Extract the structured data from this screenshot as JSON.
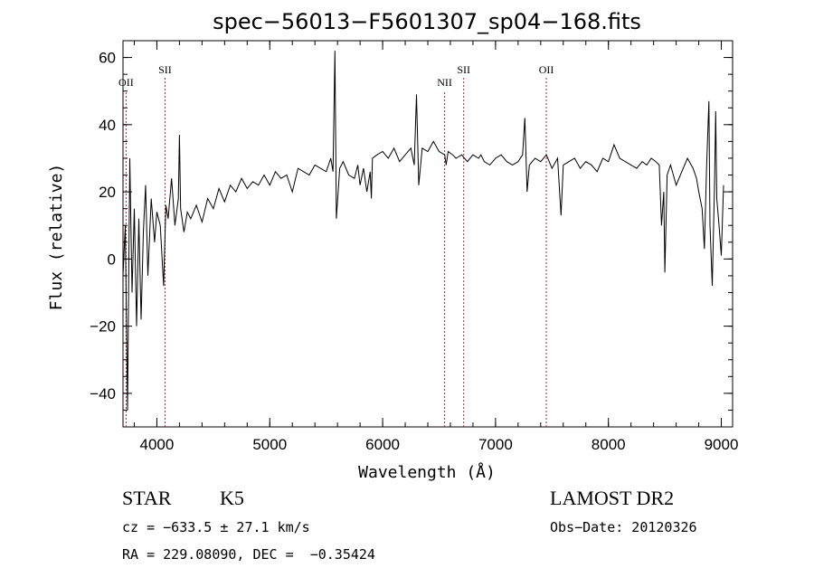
{
  "chart_data": {
    "type": "line",
    "title": "spec−56013−F5601307_sp04−168.fits",
    "xlabel": "Wavelength (Å)",
    "ylabel": "Flux (relative)",
    "xlim": [
      3700,
      9100
    ],
    "ylim": [
      -50,
      65
    ],
    "x_ticks": [
      4000,
      5000,
      6000,
      7000,
      8000,
      9000
    ],
    "x_tick_labels": [
      "4000",
      "5000",
      "6000",
      "7000",
      "8000",
      "9000"
    ],
    "y_ticks": [
      -40,
      -20,
      0,
      20,
      40,
      60
    ],
    "y_tick_labels": [
      "−40",
      "−20",
      "0",
      "20",
      "40",
      "60"
    ],
    "grid": false,
    "line_color": "#000000",
    "marker_color": "#b22222",
    "emission_lines": [
      {
        "label": "OII",
        "wavelength": 3727
      },
      {
        "label": "SII",
        "wavelength": 4072
      },
      {
        "label": "NII",
        "wavelength": 6549
      },
      {
        "label": "SII",
        "wavelength": 6718
      },
      {
        "label": "OII",
        "wavelength": 7450
      }
    ],
    "series": [
      {
        "x": [
          3700,
          3720,
          3740,
          3760,
          3780,
          3800,
          3820,
          3840,
          3860,
          3880,
          3900,
          3920,
          3950,
          3980,
          4000,
          4030,
          4060,
          4080,
          4100,
          4130,
          4160,
          4190,
          4200,
          4210,
          4240,
          4270,
          4300,
          4350,
          4400,
          4450,
          4500,
          4550,
          4600,
          4650,
          4700,
          4750,
          4800,
          4850,
          4900,
          4950,
          5000,
          5050,
          5100,
          5150,
          5200,
          5250,
          5300,
          5350,
          5400,
          5450,
          5500,
          5540,
          5560,
          5577,
          5590,
          5620,
          5650,
          5700,
          5750,
          5780,
          5800,
          5830,
          5860,
          5890,
          5900,
          5910,
          5950,
          6000,
          6050,
          6100,
          6150,
          6200,
          6250,
          6280,
          6300,
          6320,
          6350,
          6400,
          6450,
          6500,
          6550,
          6563,
          6580,
          6620,
          6650,
          6700,
          6750,
          6800,
          6850,
          6870,
          6900,
          6950,
          7000,
          7050,
          7100,
          7150,
          7200,
          7240,
          7260,
          7280,
          7300,
          7350,
          7400,
          7450,
          7500,
          7550,
          7580,
          7600,
          7650,
          7700,
          7750,
          7800,
          7850,
          7900,
          7950,
          8000,
          8050,
          8100,
          8150,
          8200,
          8250,
          8300,
          8340,
          8380,
          8420,
          8450,
          8470,
          8490,
          8500,
          8520,
          8550,
          8600,
          8650,
          8700,
          8750,
          8780,
          8800,
          8830,
          8850,
          8870,
          8890,
          8900,
          8920,
          8940,
          8950,
          8960,
          8980,
          9000,
          9020
        ],
        "y": [
          -5,
          10,
          -45,
          30,
          -10,
          15,
          -20,
          12,
          -18,
          8,
          22,
          -5,
          18,
          5,
          14,
          10,
          -8,
          16,
          12,
          24,
          10,
          18,
          37,
          15,
          8,
          14,
          12,
          16,
          11,
          18,
          15,
          21,
          17,
          22,
          20,
          24,
          21,
          23,
          22,
          25,
          22,
          26,
          24,
          25,
          20,
          27,
          26,
          25,
          28,
          27,
          26,
          30,
          26,
          62,
          12,
          27,
          29,
          25,
          24,
          28,
          22,
          27,
          20,
          26,
          18,
          30,
          31,
          32,
          30,
          33,
          29,
          31,
          33,
          28,
          49,
          22,
          33,
          32,
          35,
          32,
          31,
          28,
          32,
          31,
          30,
          31,
          29,
          31,
          30,
          31,
          29,
          28,
          30,
          31,
          29,
          28,
          29,
          31,
          42,
          20,
          28,
          30,
          29,
          31,
          27,
          30,
          13,
          28,
          29,
          30,
          27,
          29,
          28,
          26,
          30,
          29,
          34,
          30,
          29,
          28,
          27,
          29,
          28,
          30,
          29,
          28,
          10,
          20,
          -4,
          25,
          28,
          22,
          26,
          30,
          27,
          24,
          20,
          15,
          3,
          28,
          47,
          10,
          -8,
          22,
          44,
          18,
          10,
          1,
          22
        ]
      }
    ]
  },
  "info": {
    "object_class": "STAR",
    "subclass": "K5",
    "survey": "LAMOST DR2",
    "redshift_line": "cz = −633.5 ± 27.1 km/s",
    "obs_date_line": "Obs−Date: 20120326",
    "coords_line": "RA = 229.08090, DEC =  −0.35424"
  }
}
